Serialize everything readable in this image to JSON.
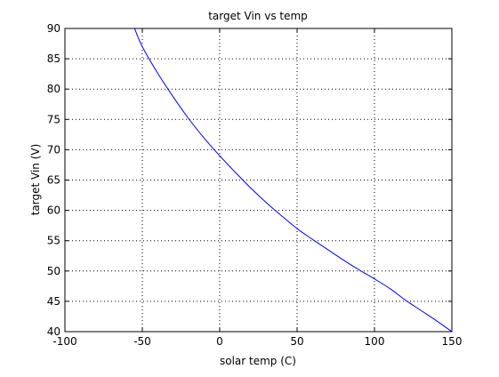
{
  "chart_data": {
    "type": "line",
    "title": "target Vin vs temp",
    "xlabel": "solar temp (C)",
    "ylabel": "target Vin (V)",
    "xlim": [
      -100,
      150
    ],
    "ylim": [
      40,
      90
    ],
    "xticks": [
      -100,
      -50,
      0,
      50,
      100,
      150
    ],
    "yticks": [
      40,
      45,
      50,
      55,
      60,
      65,
      70,
      75,
      80,
      85,
      90
    ],
    "grid": true,
    "grid_style": "dotted",
    "line_color": "#0000ff",
    "series": [
      {
        "x": [
          -55,
          -50,
          -40,
          -30,
          -20,
          -10,
          0,
          10,
          20,
          30,
          40,
          50,
          60,
          70,
          80,
          90,
          100,
          110,
          120,
          130,
          140,
          150
        ],
        "values": [
          90,
          87,
          82.6,
          78.7,
          75.1,
          71.9,
          69,
          66.3,
          63.7,
          61.3,
          59.1,
          57,
          55.2,
          53.5,
          51.8,
          50.2,
          48.7,
          47.1,
          45.2,
          43.5,
          41.8,
          40
        ]
      }
    ]
  }
}
